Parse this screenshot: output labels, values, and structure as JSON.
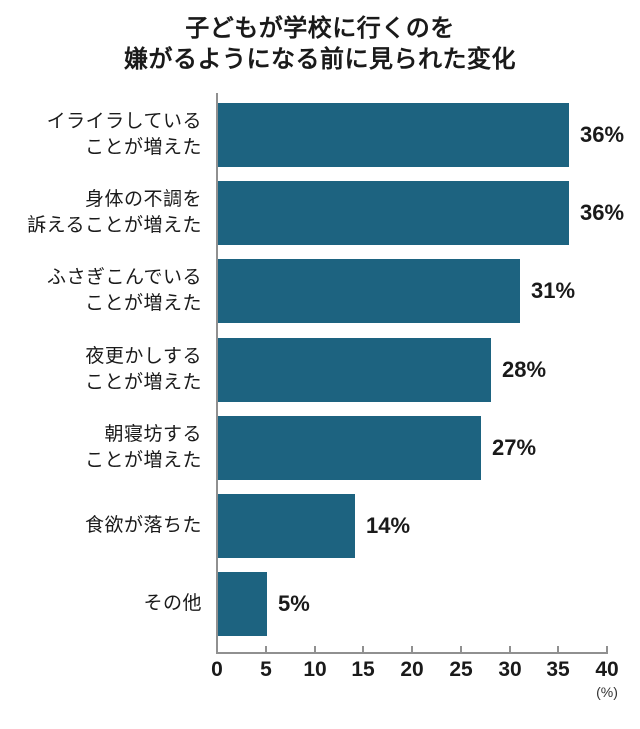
{
  "title": {
    "line1": "子どもが学校に行くのを",
    "line2": "嫌がるようになる前に見られた変化"
  },
  "axis": {
    "unit_label": "(%)"
  },
  "chart_data": {
    "type": "bar",
    "orientation": "horizontal",
    "title": "子どもが学校に行くのを嫌がるようになる前に見られた変化",
    "categories": [
      "イライラしていることが増えた",
      "身体の不調を訴えることが増えた",
      "ふさぎこんでいることが増えた",
      "夜更かしすることが増えた",
      "朝寝坊することが増えた",
      "食欲が落ちた",
      "その他"
    ],
    "label_lines": [
      [
        "イライラしている",
        "ことが増えた"
      ],
      [
        "身体の不調を",
        "訴えることが増えた"
      ],
      [
        "ふさぎこんでいる",
        "ことが増えた"
      ],
      [
        "夜更かしする",
        "ことが増えた"
      ],
      [
        "朝寝坊する",
        "ことが増えた"
      ],
      [
        "食欲が落ちた"
      ],
      [
        "その他"
      ]
    ],
    "values": [
      36,
      36,
      31,
      28,
      27,
      14,
      5
    ],
    "value_labels": [
      "36%",
      "36%",
      "31%",
      "28%",
      "27%",
      "14%",
      "5%"
    ],
    "xlim": [
      0,
      40
    ],
    "x_ticks": [
      0,
      5,
      10,
      15,
      20,
      25,
      30,
      35,
      40
    ],
    "x_unit": "(%)",
    "legend": "none",
    "grid": "off",
    "bar_color": "#1d6380",
    "axis_color": "#909090",
    "text_color": "#1a1a1a"
  }
}
